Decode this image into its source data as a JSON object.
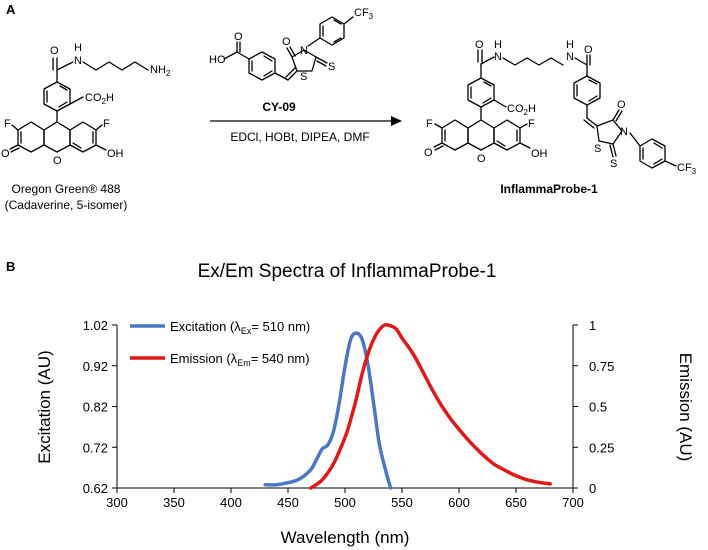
{
  "panel_a": {
    "label": "A",
    "starting_material": {
      "name": "Oregon Green® 488",
      "subname": "(Cadaverine, 5-isomer)"
    },
    "reagent": {
      "name": "CY-09",
      "conditions": "EDCl, HOBt, DIPEA, DMF"
    },
    "product": {
      "name": "InflammaProbe-1"
    },
    "atom_labels": {
      "N": "N",
      "H": "H",
      "O": "O",
      "S": "S",
      "F": "F",
      "NH2": "NH",
      "NH2_sub": "2",
      "CO2H": "CO",
      "CO2H_sub": "2",
      "CO2H_H": "H",
      "OH": "OH",
      "HO": "HO",
      "CF3": "CF",
      "CF3_sub": "3"
    }
  },
  "panel_b": {
    "label": "B"
  },
  "chart_data": {
    "type": "line",
    "title": "Ex/Em Spectra of InflammaProbe-1",
    "xlabel": "Wavelength (nm)",
    "ylabel_left": "Excitation (AU)",
    "ylabel_right": "Emission (AU)",
    "xlim": [
      300,
      700
    ],
    "ylim_left": [
      0.62,
      1.02
    ],
    "ylim_right": [
      0,
      1
    ],
    "xticks": [
      "300",
      "350",
      "400",
      "450",
      "500",
      "550",
      "600",
      "650",
      "700"
    ],
    "yticks_left": [
      "0.62",
      "0.72",
      "0.82",
      "0.92",
      "1.02"
    ],
    "yticks_right": [
      "0",
      "0.25",
      "0.5",
      "0.75",
      "1"
    ],
    "grid": false,
    "legend_position": "top-left",
    "series": [
      {
        "name": "Excitation (λEx= 510 nm)",
        "legend_main": "Excitation (λ",
        "legend_sub": "Ex",
        "legend_tail": "= 510 nm)",
        "axis": "left",
        "color": "#4a78c4",
        "x": [
          430,
          440,
          450,
          460,
          470,
          475,
          480,
          485,
          490,
          495,
          500,
          505,
          510,
          515,
          520,
          525,
          530,
          535,
          540
        ],
        "y": [
          0.628,
          0.628,
          0.633,
          0.642,
          0.665,
          0.69,
          0.716,
          0.726,
          0.76,
          0.83,
          0.918,
          0.985,
          1.0,
          0.985,
          0.925,
          0.83,
          0.73,
          0.67,
          0.62
        ]
      },
      {
        "name": "Emission (λEm= 540 nm)",
        "legend_main": "Emission (λ",
        "legend_sub": "Em",
        "legend_tail": "= 540 nm)",
        "axis": "right",
        "color": "#e01818",
        "x": [
          470,
          480,
          490,
          500,
          505,
          510,
          515,
          520,
          525,
          530,
          535,
          540,
          545,
          550,
          560,
          570,
          580,
          590,
          600,
          610,
          620,
          630,
          640,
          650,
          660,
          670,
          680
        ],
        "y": [
          0.0,
          0.05,
          0.15,
          0.31,
          0.42,
          0.55,
          0.7,
          0.82,
          0.91,
          0.97,
          1.0,
          0.995,
          0.975,
          0.92,
          0.82,
          0.69,
          0.56,
          0.45,
          0.36,
          0.28,
          0.21,
          0.15,
          0.11,
          0.075,
          0.05,
          0.035,
          0.025
        ]
      }
    ]
  }
}
